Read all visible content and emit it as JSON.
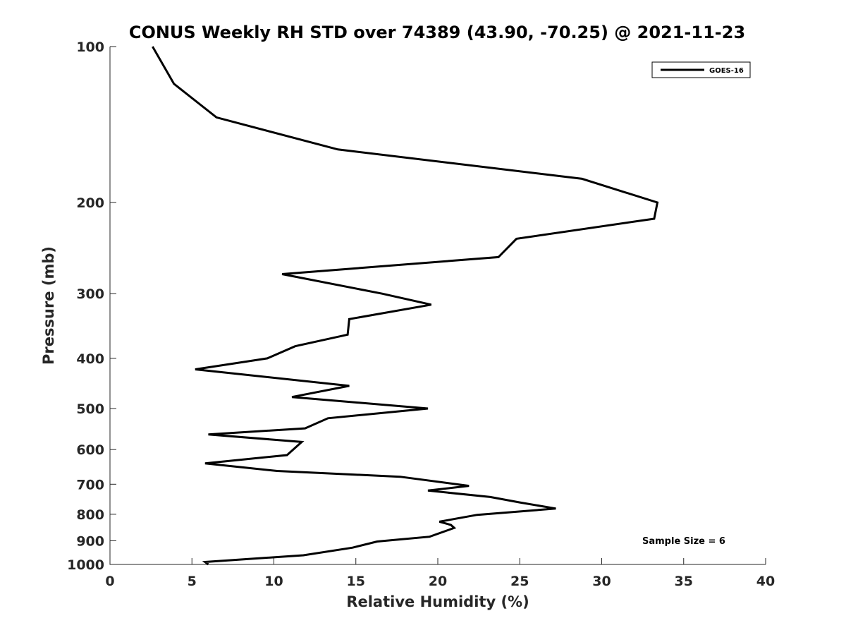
{
  "chart_data": {
    "type": "line",
    "title": "CONUS Weekly RH STD over 74389 (43.90, -70.25) @ 2021-11-23",
    "xlabel": "Relative Humidity (%)",
    "ylabel": "Pressure (mb)",
    "xlim": [
      0,
      40
    ],
    "ylim": [
      100,
      1000
    ],
    "y_scale": "log",
    "y_reversed": true,
    "grid": false,
    "legend_position": "top-right",
    "x_ticks": [
      0,
      5,
      10,
      15,
      20,
      25,
      30,
      35,
      40
    ],
    "y_ticks": [
      100,
      200,
      300,
      400,
      500,
      600,
      700,
      800,
      900,
      1000
    ],
    "series": [
      {
        "name": "GOES-16",
        "color": "#000000",
        "points": [
          [
            2.6,
            100
          ],
          [
            3.9,
            118
          ],
          [
            6.5,
            137
          ],
          [
            13.9,
            158
          ],
          [
            28.8,
            180
          ],
          [
            33.4,
            200
          ],
          [
            33.2,
            215
          ],
          [
            24.8,
            235
          ],
          [
            23.7,
            255
          ],
          [
            10.5,
            275
          ],
          [
            16.6,
            300
          ],
          [
            19.6,
            315
          ],
          [
            14.6,
            336
          ],
          [
            14.5,
            360
          ],
          [
            11.3,
            379
          ],
          [
            9.6,
            400
          ],
          [
            5.2,
            420
          ],
          [
            14.6,
            452
          ],
          [
            11.1,
            475
          ],
          [
            19.4,
            500
          ],
          [
            13.3,
            522
          ],
          [
            11.9,
            546
          ],
          [
            6.0,
            561
          ],
          [
            11.7,
            580
          ],
          [
            10.8,
            615
          ],
          [
            5.8,
            638
          ],
          [
            10.2,
            660
          ],
          [
            17.7,
            677
          ],
          [
            21.9,
            705
          ],
          [
            19.4,
            720
          ],
          [
            23.2,
            741
          ],
          [
            25.0,
            759
          ],
          [
            27.2,
            780
          ],
          [
            22.4,
            802
          ],
          [
            20.1,
            827
          ],
          [
            20.8,
            839
          ],
          [
            21.0,
            850
          ],
          [
            19.5,
            884
          ],
          [
            16.3,
            903
          ],
          [
            14.8,
            928
          ],
          [
            11.8,
            960
          ],
          [
            5.8,
            989
          ],
          [
            6.0,
            1000
          ]
        ]
      }
    ],
    "annotation": "Sample Size = 6"
  }
}
